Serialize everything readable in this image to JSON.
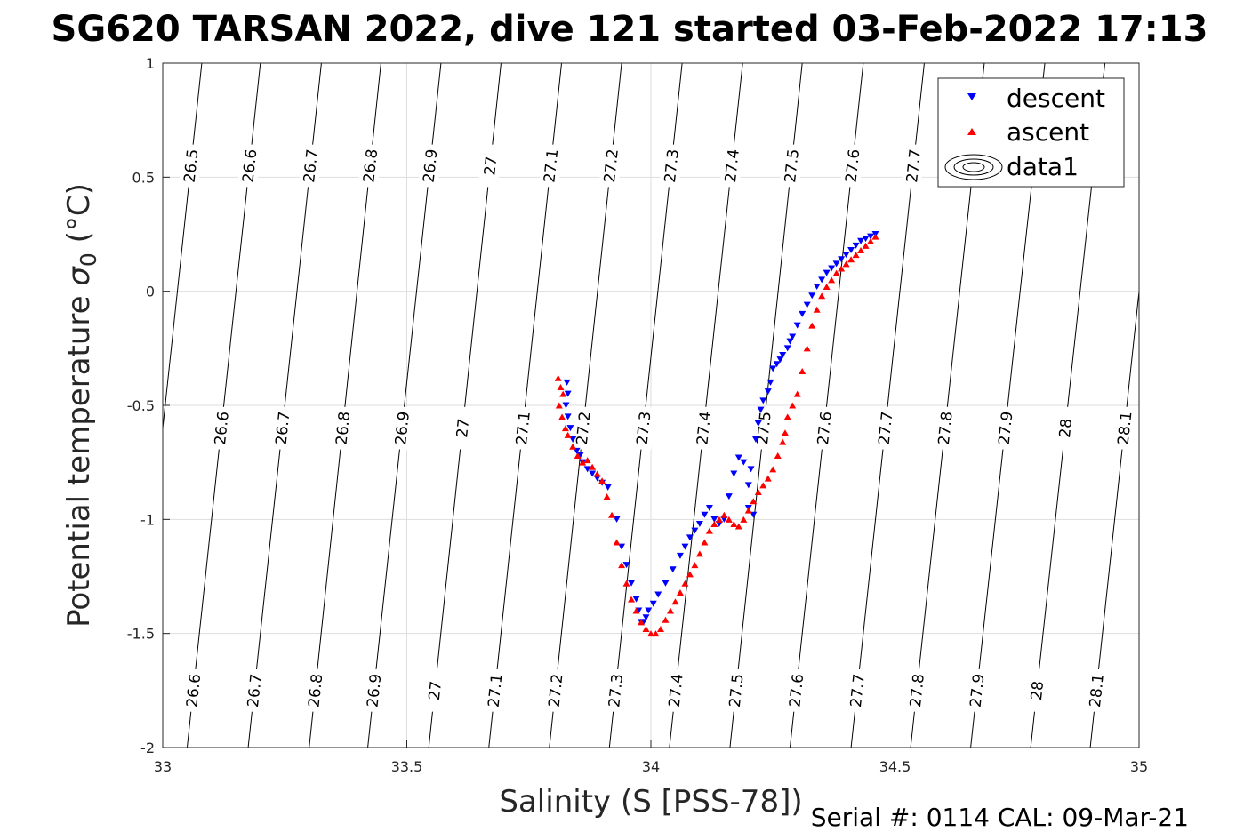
{
  "chart_data": {
    "type": "scatter",
    "title": "SG620 TARSAN 2022, dive 121 started 03-Feb-2022 17:13",
    "xlabel": "Salinity (S [PSS-78])",
    "ylabel_prefix": "Potential temperature ",
    "ylabel_sigma": "σ",
    "ylabel_sub": "0",
    "ylabel_suffix": " (°C)",
    "xlim": [
      33,
      35
    ],
    "ylim": [
      -2,
      1
    ],
    "xticks": [
      33,
      33.5,
      34,
      34.5,
      35
    ],
    "xtick_labels": [
      "33",
      "33.5",
      "34",
      "34.5",
      "35"
    ],
    "yticks": [
      -2,
      -1.5,
      -1,
      -0.5,
      0,
      0.5,
      1
    ],
    "ytick_labels": [
      "-2",
      "-1.5",
      "-1",
      "-0.5",
      "0",
      "0.5",
      "1"
    ],
    "grid": true,
    "legend_position": "top-right",
    "legend": [
      "descent",
      "ascent",
      "data1"
    ],
    "footer": "Serial #: 0114  CAL: 09-Mar-21",
    "density_contours": {
      "levels": [
        26.5,
        26.6,
        26.7,
        26.8,
        26.9,
        27,
        27.1,
        27.2,
        27.3,
        27.4,
        27.5,
        27.6,
        27.7,
        27.8,
        27.9,
        28,
        28.1
      ],
      "labels": [
        "26.5",
        "26.6",
        "26.7",
        "26.8",
        "26.9",
        "27",
        "27.1",
        "27.2",
        "27.3",
        "27.4",
        "27.5",
        "27.6",
        "27.7",
        "27.8",
        "27.9",
        "28",
        "28.1"
      ],
      "salinity_at_minus2": [
        32.93,
        33.05,
        33.175,
        33.3,
        33.42,
        33.545,
        33.668,
        33.792,
        33.915,
        34.038,
        34.162,
        34.285,
        34.41,
        34.532,
        34.655,
        34.778,
        34.9
      ],
      "salinity_at_plus1": [
        33.08,
        33.2,
        33.325,
        33.447,
        33.57,
        33.693,
        33.817,
        33.94,
        34.064,
        34.188,
        34.31,
        34.435,
        34.56,
        34.683,
        34.807,
        34.93,
        35.05
      ]
    },
    "series": [
      {
        "name": "descent",
        "color": "#0000ff",
        "marker": "triangle-down",
        "x": [
          33.828,
          33.83,
          33.826,
          33.83,
          33.835,
          33.84,
          33.848,
          33.855,
          33.86,
          33.87,
          33.88,
          33.89,
          33.9,
          33.912,
          33.93,
          33.94,
          33.95,
          33.96,
          33.97,
          33.975,
          33.98,
          33.985,
          33.99,
          33.995,
          34.005,
          34.015,
          34.03,
          34.045,
          34.06,
          34.07,
          34.08,
          34.09,
          34.1,
          34.11,
          34.12,
          34.13,
          34.14,
          34.15,
          34.16,
          34.17,
          34.18,
          34.19,
          34.2,
          34.2,
          34.21,
          34.205,
          34.215,
          34.22,
          34.225,
          34.23,
          34.24,
          34.245,
          34.25,
          34.258,
          34.265,
          34.27,
          34.28,
          34.285,
          34.29,
          34.3,
          34.31,
          34.32,
          34.33,
          34.34,
          34.35,
          34.36,
          34.37,
          34.38,
          34.39,
          34.4,
          34.41,
          34.42,
          34.43,
          34.44,
          34.45,
          34.46
        ],
        "y": [
          -0.4,
          -0.45,
          -0.5,
          -0.55,
          -0.6,
          -0.65,
          -0.7,
          -0.72,
          -0.75,
          -0.78,
          -0.8,
          -0.82,
          -0.84,
          -0.86,
          -1.0,
          -1.12,
          -1.2,
          -1.28,
          -1.35,
          -1.4,
          -1.45,
          -1.45,
          -1.43,
          -1.4,
          -1.37,
          -1.33,
          -1.28,
          -1.22,
          -1.16,
          -1.12,
          -1.08,
          -1.05,
          -1.02,
          -0.98,
          -0.95,
          -1.0,
          -1.02,
          -1.0,
          -0.9,
          -0.8,
          -0.73,
          -0.75,
          -0.85,
          -0.95,
          -0.98,
          -0.78,
          -0.65,
          -0.58,
          -0.52,
          -0.48,
          -0.44,
          -0.4,
          -0.34,
          -0.32,
          -0.3,
          -0.28,
          -0.25,
          -0.22,
          -0.2,
          -0.15,
          -0.1,
          -0.06,
          -0.02,
          0.02,
          0.05,
          0.08,
          0.1,
          0.12,
          0.14,
          0.16,
          0.18,
          0.2,
          0.22,
          0.23,
          0.24,
          0.25
        ]
      },
      {
        "name": "ascent",
        "color": "#ff0000",
        "marker": "triangle-up",
        "x": [
          33.81,
          33.815,
          33.82,
          33.812,
          33.818,
          33.825,
          33.83,
          33.84,
          33.85,
          33.86,
          33.87,
          33.88,
          33.89,
          33.9,
          33.91,
          33.92,
          33.93,
          33.94,
          33.95,
          33.96,
          33.97,
          33.98,
          33.99,
          34.0,
          34.01,
          34.02,
          34.03,
          34.04,
          34.05,
          34.06,
          34.07,
          34.08,
          34.09,
          34.1,
          34.11,
          34.12,
          34.13,
          34.14,
          34.15,
          34.16,
          34.17,
          34.18,
          34.19,
          34.2,
          34.21,
          34.22,
          34.23,
          34.24,
          34.25,
          34.26,
          34.27,
          34.275,
          34.28,
          34.29,
          34.3,
          34.31,
          34.32,
          34.33,
          34.34,
          34.35,
          34.36,
          34.37,
          34.38,
          34.39,
          34.4,
          34.41,
          34.42,
          34.43,
          34.44,
          34.45,
          34.46
        ],
        "y": [
          -0.38,
          -0.42,
          -0.45,
          -0.5,
          -0.55,
          -0.6,
          -0.63,
          -0.68,
          -0.72,
          -0.75,
          -0.74,
          -0.77,
          -0.8,
          -0.83,
          -0.9,
          -0.98,
          -1.1,
          -1.2,
          -1.28,
          -1.35,
          -1.4,
          -1.45,
          -1.48,
          -1.5,
          -1.5,
          -1.48,
          -1.44,
          -1.4,
          -1.36,
          -1.32,
          -1.28,
          -1.24,
          -1.2,
          -1.15,
          -1.1,
          -1.05,
          -1.02,
          -1.0,
          -0.98,
          -1.0,
          -1.02,
          -1.03,
          -1.0,
          -0.96,
          -0.92,
          -0.88,
          -0.85,
          -0.82,
          -0.78,
          -0.72,
          -0.66,
          -0.62,
          -0.55,
          -0.5,
          -0.45,
          -0.35,
          -0.25,
          -0.15,
          -0.08,
          -0.02,
          0.02,
          0.05,
          0.08,
          0.1,
          0.12,
          0.14,
          0.16,
          0.18,
          0.2,
          0.22,
          0.24
        ]
      }
    ]
  }
}
